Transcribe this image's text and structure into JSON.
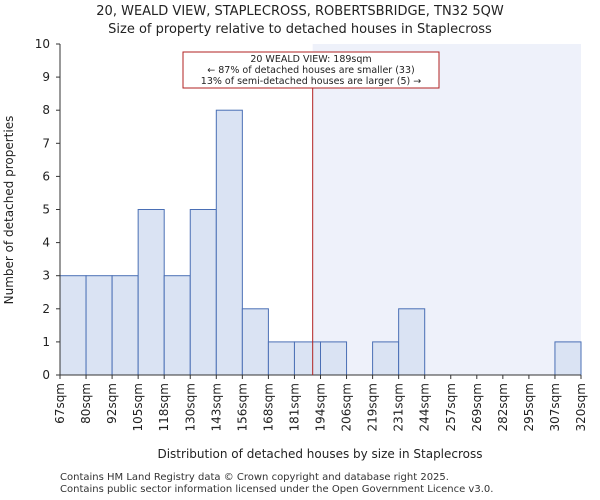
{
  "chart_data": {
    "type": "histogram",
    "title": "20, WEALD VIEW, STAPLECROSS, ROBERTSBRIDGE, TN32 5QW",
    "subtitle": "Size of property relative to detached houses in Staplecross",
    "xlabel": "Distribution of detached houses by size in Staplecross",
    "ylabel": "Number of detached properties",
    "categories": [
      "67sqm",
      "80sqm",
      "92sqm",
      "105sqm",
      "118sqm",
      "130sqm",
      "143sqm",
      "156sqm",
      "168sqm",
      "181sqm",
      "194sqm",
      "206sqm",
      "219sqm",
      "231sqm",
      "244sqm",
      "257sqm",
      "269sqm",
      "282sqm",
      "295sqm",
      "307sqm",
      "320sqm"
    ],
    "values": [
      3,
      3,
      3,
      5,
      3,
      5,
      8,
      2,
      1,
      1,
      1,
      0,
      1,
      2,
      0,
      0,
      0,
      0,
      0,
      1
    ],
    "ylim": [
      0,
      10
    ],
    "yticks": [
      0,
      1,
      2,
      3,
      4,
      5,
      6,
      7,
      8,
      9,
      10
    ],
    "marker": {
      "value_sqm": 189,
      "bin_position": 9.7
    },
    "annotation": {
      "line1": "20 WEALD VIEW: 189sqm",
      "line2": "← 87% of detached houses are smaller (33)",
      "line3": "13% of semi-detached houses are larger (5) →"
    },
    "colors": {
      "bar_fill": "#dae3f3",
      "bar_stroke": "#4a6fb5",
      "highlight_bg": "#eef1fa",
      "marker": "#b22222",
      "axis": "#333333"
    }
  },
  "footer": {
    "line1": "Contains HM Land Registry data © Crown copyright and database right 2025.",
    "line2": "Contains public sector information licensed under the Open Government Licence v3.0."
  }
}
